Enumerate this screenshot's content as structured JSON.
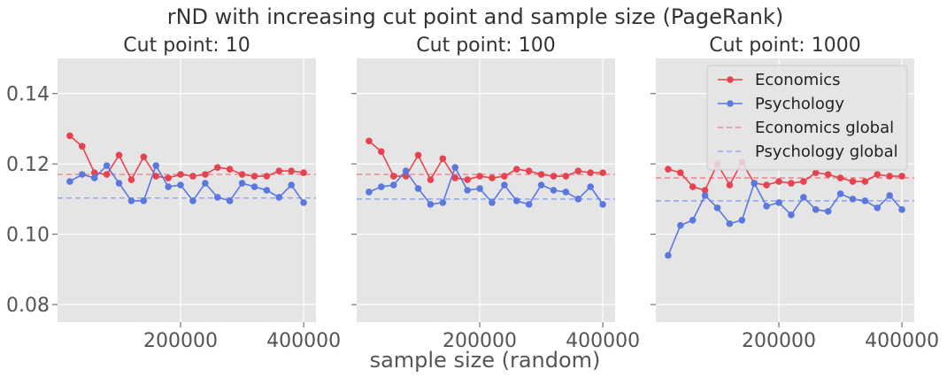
{
  "suptitle": "rND with increasing cut point and sample size (PageRank)",
  "xlabel": "sample size (random)",
  "colors": {
    "economics": "#e5434f",
    "psychology": "#5a78e0",
    "economics_global": "#ef8a8f",
    "psychology_global": "#97a8ec",
    "panel_bg": "#e5e5e5",
    "grid": "#ffffff",
    "text": "#555555"
  },
  "chart_data": [
    {
      "type": "line",
      "title": "Cut point: 10",
      "x": [
        20000,
        40000,
        60000,
        80000,
        100000,
        120000,
        140000,
        160000,
        180000,
        200000,
        220000,
        240000,
        260000,
        280000,
        300000,
        320000,
        340000,
        360000,
        380000,
        400000
      ],
      "series": [
        {
          "name": "Economics",
          "values": [
            0.128,
            0.125,
            0.1175,
            0.117,
            0.1225,
            0.1155,
            0.122,
            0.1165,
            0.116,
            0.117,
            0.1165,
            0.117,
            0.119,
            0.1185,
            0.117,
            0.1165,
            0.1165,
            0.118,
            0.118,
            0.1175
          ]
        },
        {
          "name": "Psychology",
          "values": [
            0.115,
            0.117,
            0.116,
            0.1195,
            0.1145,
            0.1095,
            0.1095,
            0.1195,
            0.1135,
            0.114,
            0.1095,
            0.1145,
            0.1105,
            0.1095,
            0.1145,
            0.1135,
            0.1125,
            0.1105,
            0.114,
            0.109
          ]
        }
      ],
      "hlines": [
        {
          "name": "Economics global",
          "value": 0.117
        },
        {
          "name": "Psychology global",
          "value": 0.1103
        }
      ],
      "xticks": [
        200000,
        400000
      ],
      "yticks": [
        0.08,
        0.1,
        0.12,
        0.14
      ],
      "xlim": [
        0,
        420000
      ],
      "ylim": [
        0.075,
        0.15
      ],
      "legend": "none"
    },
    {
      "type": "line",
      "title": "Cut point: 100",
      "x": [
        20000,
        40000,
        60000,
        80000,
        100000,
        120000,
        140000,
        160000,
        180000,
        200000,
        220000,
        240000,
        260000,
        280000,
        300000,
        320000,
        340000,
        360000,
        380000,
        400000
      ],
      "series": [
        {
          "name": "Economics",
          "values": [
            0.1265,
            0.1235,
            0.1165,
            0.1165,
            0.1225,
            0.1155,
            0.1215,
            0.116,
            0.1155,
            0.1165,
            0.116,
            0.1165,
            0.1185,
            0.118,
            0.117,
            0.1165,
            0.1165,
            0.118,
            0.1175,
            0.1175
          ]
        },
        {
          "name": "Psychology",
          "values": [
            0.112,
            0.1135,
            0.114,
            0.118,
            0.113,
            0.1085,
            0.109,
            0.119,
            0.1125,
            0.113,
            0.109,
            0.114,
            0.1095,
            0.1085,
            0.114,
            0.1125,
            0.112,
            0.11,
            0.1135,
            0.1085
          ]
        }
      ],
      "hlines": [
        {
          "name": "Economics global",
          "value": 0.117
        },
        {
          "name": "Psychology global",
          "value": 0.11
        }
      ],
      "xticks": [
        200000,
        400000
      ],
      "yticks": [
        0.08,
        0.1,
        0.12,
        0.14
      ],
      "xlim": [
        0,
        420000
      ],
      "ylim": [
        0.075,
        0.15
      ],
      "legend": "none"
    },
    {
      "type": "line",
      "title": "Cut point: 1000",
      "x": [
        20000,
        40000,
        60000,
        80000,
        100000,
        120000,
        140000,
        160000,
        180000,
        200000,
        220000,
        240000,
        260000,
        280000,
        300000,
        320000,
        340000,
        360000,
        380000,
        400000
      ],
      "series": [
        {
          "name": "Economics",
          "values": [
            0.1185,
            0.1175,
            0.1135,
            0.1125,
            0.12,
            0.114,
            0.1205,
            0.1145,
            0.114,
            0.115,
            0.1145,
            0.115,
            0.1175,
            0.117,
            0.116,
            0.115,
            0.115,
            0.117,
            0.1165,
            0.1165
          ]
        },
        {
          "name": "Psychology",
          "values": [
            0.094,
            0.1025,
            0.104,
            0.111,
            0.1075,
            0.103,
            0.104,
            0.1145,
            0.108,
            0.109,
            0.1055,
            0.1105,
            0.107,
            0.1065,
            0.1115,
            0.11,
            0.1095,
            0.1075,
            0.111,
            0.107
          ]
        }
      ],
      "hlines": [
        {
          "name": "Economics global",
          "value": 0.116
        },
        {
          "name": "Psychology global",
          "value": 0.1095
        }
      ],
      "xticks": [
        200000,
        400000
      ],
      "yticks": [
        0.08,
        0.1,
        0.12,
        0.14
      ],
      "xlim": [
        0,
        420000
      ],
      "ylim": [
        0.075,
        0.15
      ],
      "legend": "upper-right",
      "legend_entries": [
        "Economics",
        "Psychology",
        "Economics global",
        "Psychology global"
      ]
    }
  ]
}
